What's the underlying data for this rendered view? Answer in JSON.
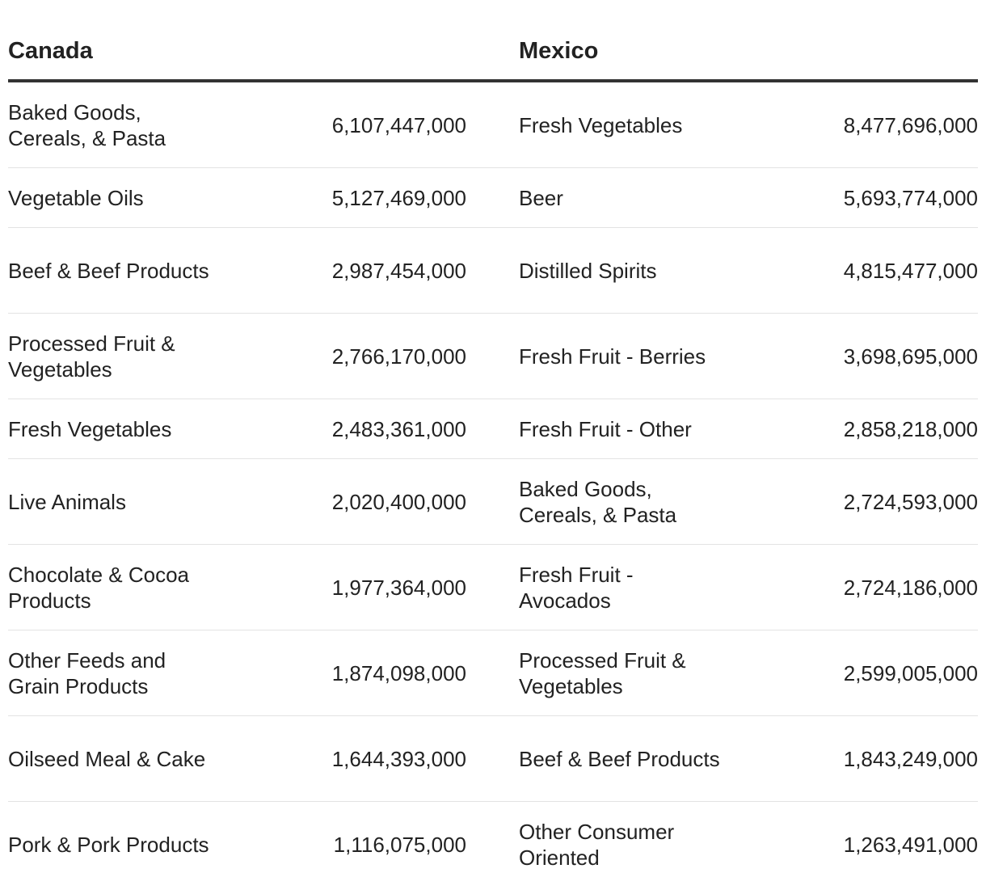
{
  "chart_data": {
    "type": "table",
    "columns": [
      "Canada",
      "",
      "Mexico",
      ""
    ],
    "canada": {
      "header": "Canada",
      "rows": [
        {
          "category": "Baked Goods, Cereals, & Pasta",
          "value": "6,107,447,000"
        },
        {
          "category": "Vegetable Oils",
          "value": "5,127,469,000"
        },
        {
          "category": "Beef & Beef Products",
          "value": "2,987,454,000"
        },
        {
          "category": "Processed Fruit & Vegetables",
          "value": "2,766,170,000"
        },
        {
          "category": "Fresh Vegetables",
          "value": "2,483,361,000"
        },
        {
          "category": "Live Animals",
          "value": "2,020,400,000"
        },
        {
          "category": "Chocolate & Cocoa Products",
          "value": "1,977,364,000"
        },
        {
          "category": "Other Feeds and Grain Products",
          "value": "1,874,098,000"
        },
        {
          "category": "Oilseed Meal & Cake",
          "value": "1,644,393,000"
        },
        {
          "category": "Pork & Pork Products",
          "value": "1,116,075,000"
        }
      ]
    },
    "mexico": {
      "header": "Mexico",
      "rows": [
        {
          "category": "Fresh Vegetables",
          "value": "8,477,696,000"
        },
        {
          "category": "Beer",
          "value": "5,693,774,000"
        },
        {
          "category": "Distilled Spirits",
          "value": "4,815,477,000"
        },
        {
          "category": "Fresh Fruit - Berries",
          "value": "3,698,695,000"
        },
        {
          "category": "Fresh Fruit - Other",
          "value": "2,858,218,000"
        },
        {
          "category": "Baked Goods, Cereals, & Pasta",
          "value": "2,724,593,000"
        },
        {
          "category": "Fresh Fruit - Avocados",
          "value": "2,724,186,000"
        },
        {
          "category": "Processed Fruit & Vegetables",
          "value": "2,599,005,000"
        },
        {
          "category": "Beef & Beef Products",
          "value": "1,843,249,000"
        },
        {
          "category": "Other Consumer Oriented",
          "value": "1,263,491,000"
        }
      ]
    }
  },
  "colors": {
    "text": "#222222",
    "header_rule": "#333333",
    "row_rule": "#e3e3e3",
    "background": "#ffffff"
  }
}
